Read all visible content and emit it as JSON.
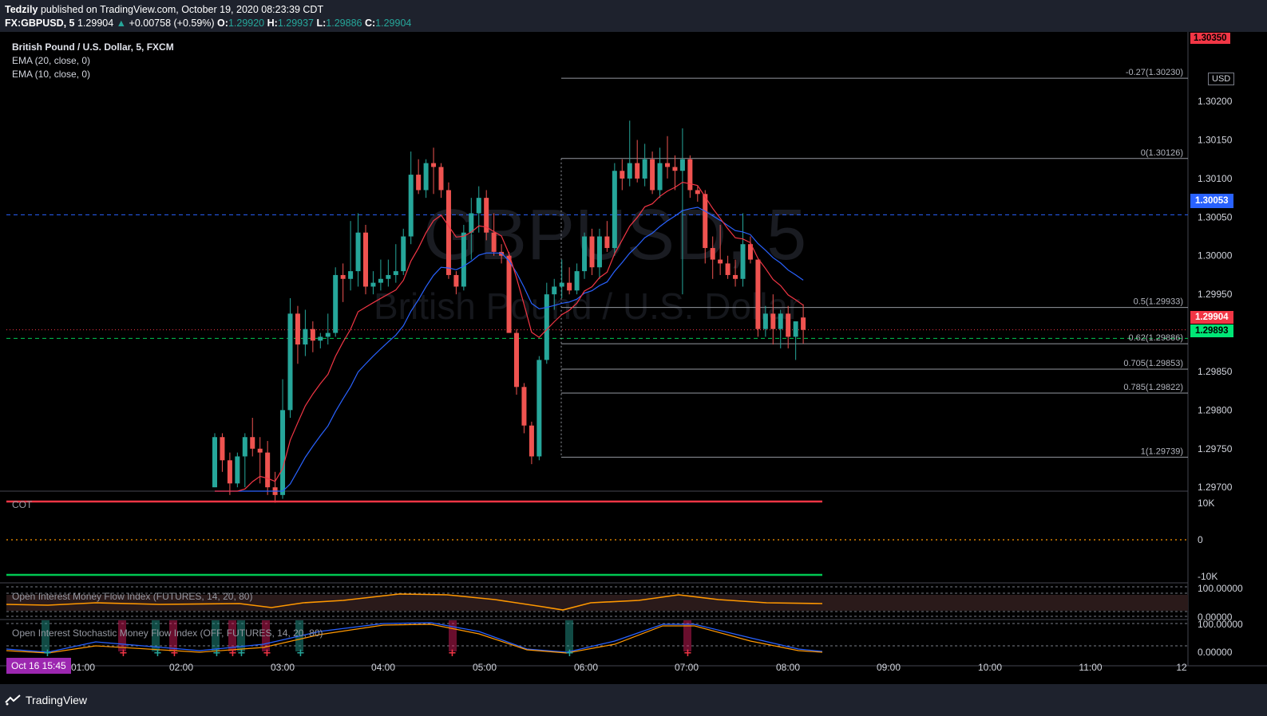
{
  "header": {
    "author": "Tedzily",
    "published": "published on TradingView.com, October 19, 2020 08:23:39 CDT",
    "symbol": "FX:GBPUSD, 5",
    "last": "1.29904",
    "change": "+0.00758 (+0.59%)",
    "o_label": "O:",
    "o": "1.29920",
    "h_label": "H:",
    "h": "1.29937",
    "l_label": "L:",
    "l": "1.29886",
    "c_label": "C:",
    "c": "1.29904"
  },
  "legend": {
    "title": "British Pound / U.S. Dollar, 5, FXCM",
    "ema20": "EMA (20, close, 0)",
    "ema10": "EMA (10, close, 0)"
  },
  "watermark": {
    "symbol": "GBPUSD, 5",
    "name": "British Pound / U.S. Dollar"
  },
  "currency_label": "USD",
  "price_badges": {
    "top": "1.30350",
    "blue": "1.30053",
    "last": "1.29904",
    "green": "1.29893"
  },
  "panes": {
    "cot": "COT",
    "oimfi": "Open Interest Money Flow Index (FUTURES, 14, 20, 80)",
    "oismfi": "Open Interest Stochastic Money Flow Index (OFF, FUTURES, 14, 20, 80)",
    "cot_ticks": [
      "10K",
      "0",
      "-10K"
    ],
    "mfi_ticks": [
      "100.00000",
      "0.00000"
    ],
    "smfi_ticks": [
      "100.00000",
      "0.00000"
    ]
  },
  "date_badge": "Oct 16   15:45",
  "footer": {
    "brand": "TradingView"
  },
  "colors": {
    "bull": "#26a69a",
    "bear": "#ef5350",
    "ema20": "#2962ff",
    "ema10": "#f23645",
    "bg": "#000000",
    "panel": "#1e222d"
  },
  "chart_data": {
    "type": "candlestick",
    "title": "British Pound / U.S. Dollar, 5, FXCM",
    "ylim": [
      1.29695,
      1.3029
    ],
    "y_ticks": [
      1.297,
      1.2975,
      1.298,
      1.2985,
      1.299,
      1.2995,
      1.3,
      1.3005,
      1.301,
      1.3015,
      1.302
    ],
    "y_tick_labels": [
      "1.29700",
      "1.29750",
      "1.29800",
      "1.29850",
      "1.29900",
      "1.29950",
      "1.30000",
      "1.30050",
      "1.30100",
      "1.30150",
      "1.30200"
    ],
    "x_tick_labels": [
      "01:00",
      "02:00",
      "03:00",
      "04:00",
      "05:00",
      "06:00",
      "07:00",
      "08:00",
      "09:00",
      "10:00",
      "11:00",
      "12"
    ],
    "fib_levels": [
      {
        "label": "-0.27(1.30230)",
        "price": 1.3023
      },
      {
        "label": "0(1.30126)",
        "price": 1.30126
      },
      {
        "label": "0.5(1.29933)",
        "price": 1.29933
      },
      {
        "label": "0.62(1.29886)",
        "price": 1.29886
      },
      {
        "label": "0.705(1.29853)",
        "price": 1.29853
      },
      {
        "label": "0.785(1.29822)",
        "price": 1.29822
      },
      {
        "label": "1(1.29739)",
        "price": 1.29739
      }
    ],
    "horizontal_lines": [
      {
        "price": 1.3035,
        "style": "dashed",
        "color": "#f23645"
      },
      {
        "price": 1.30053,
        "style": "dashed",
        "color": "#2962ff"
      },
      {
        "price": 1.29893,
        "style": "dashed",
        "color": "#00c853"
      },
      {
        "price": 1.29904,
        "style": "dotted",
        "color": "#f23645"
      }
    ],
    "candles": [
      {
        "o": 1.297,
        "h": 1.2977,
        "l": 1.297,
        "c": 1.29765
      },
      {
        "o": 1.29765,
        "h": 1.2977,
        "l": 1.2972,
        "c": 1.29735
      },
      {
        "o": 1.29735,
        "h": 1.29745,
        "l": 1.2969,
        "c": 1.29705
      },
      {
        "o": 1.29705,
        "h": 1.29745,
        "l": 1.297,
        "c": 1.2974
      },
      {
        "o": 1.2974,
        "h": 1.2977,
        "l": 1.297,
        "c": 1.29765
      },
      {
        "o": 1.29765,
        "h": 1.2979,
        "l": 1.2974,
        "c": 1.2975
      },
      {
        "o": 1.2975,
        "h": 1.29765,
        "l": 1.29705,
        "c": 1.29745
      },
      {
        "o": 1.29745,
        "h": 1.2976,
        "l": 1.2969,
        "c": 1.297
      },
      {
        "o": 1.297,
        "h": 1.2972,
        "l": 1.2968,
        "c": 1.2969
      },
      {
        "o": 1.2969,
        "h": 1.2984,
        "l": 1.29685,
        "c": 1.298
      },
      {
        "o": 1.298,
        "h": 1.29945,
        "l": 1.2979,
        "c": 1.29925
      },
      {
        "o": 1.29925,
        "h": 1.29935,
        "l": 1.2986,
        "c": 1.29885
      },
      {
        "o": 1.29885,
        "h": 1.2993,
        "l": 1.2987,
        "c": 1.29905
      },
      {
        "o": 1.29905,
        "h": 1.29915,
        "l": 1.29875,
        "c": 1.2989
      },
      {
        "o": 1.2989,
        "h": 1.299,
        "l": 1.2988,
        "c": 1.29895
      },
      {
        "o": 1.29895,
        "h": 1.29925,
        "l": 1.29885,
        "c": 1.299
      },
      {
        "o": 1.299,
        "h": 1.29985,
        "l": 1.29895,
        "c": 1.29975
      },
      {
        "o": 1.29975,
        "h": 1.2999,
        "l": 1.2994,
        "c": 1.2997
      },
      {
        "o": 1.2997,
        "h": 1.30045,
        "l": 1.29955,
        "c": 1.2998
      },
      {
        "o": 1.2998,
        "h": 1.30055,
        "l": 1.2996,
        "c": 1.3003
      },
      {
        "o": 1.3003,
        "h": 1.3004,
        "l": 1.2995,
        "c": 1.2996
      },
      {
        "o": 1.2996,
        "h": 1.2998,
        "l": 1.2995,
        "c": 1.29965
      },
      {
        "o": 1.29965,
        "h": 1.29995,
        "l": 1.29955,
        "c": 1.2997
      },
      {
        "o": 1.2997,
        "h": 1.29995,
        "l": 1.2996,
        "c": 1.29975
      },
      {
        "o": 1.29975,
        "h": 1.30015,
        "l": 1.29965,
        "c": 1.2998
      },
      {
        "o": 1.2998,
        "h": 1.30035,
        "l": 1.29975,
        "c": 1.30025
      },
      {
        "o": 1.30025,
        "h": 1.30135,
        "l": 1.30015,
        "c": 1.30105
      },
      {
        "o": 1.30105,
        "h": 1.30125,
        "l": 1.3008,
        "c": 1.30085
      },
      {
        "o": 1.30085,
        "h": 1.30125,
        "l": 1.30075,
        "c": 1.3012
      },
      {
        "o": 1.3012,
        "h": 1.3014,
        "l": 1.3008,
        "c": 1.30115
      },
      {
        "o": 1.30115,
        "h": 1.3012,
        "l": 1.30075,
        "c": 1.30085
      },
      {
        "o": 1.30085,
        "h": 1.30095,
        "l": 1.2997,
        "c": 1.29975
      },
      {
        "o": 1.29975,
        "h": 1.2998,
        "l": 1.2995,
        "c": 1.2996
      },
      {
        "o": 1.2996,
        "h": 1.3004,
        "l": 1.29955,
        "c": 1.3003
      },
      {
        "o": 1.3003,
        "h": 1.30075,
        "l": 1.29995,
        "c": 1.30055
      },
      {
        "o": 1.30055,
        "h": 1.3009,
        "l": 1.3003,
        "c": 1.30075
      },
      {
        "o": 1.30075,
        "h": 1.30085,
        "l": 1.3002,
        "c": 1.3003
      },
      {
        "o": 1.3003,
        "h": 1.30055,
        "l": 1.3,
        "c": 1.30005
      },
      {
        "o": 1.30005,
        "h": 1.30015,
        "l": 1.2999,
        "c": 1.3
      },
      {
        "o": 1.3,
        "h": 1.30005,
        "l": 1.299,
        "c": 1.299
      },
      {
        "o": 1.299,
        "h": 1.29905,
        "l": 1.2982,
        "c": 1.2983
      },
      {
        "o": 1.2983,
        "h": 1.29835,
        "l": 1.2977,
        "c": 1.2978
      },
      {
        "o": 1.2978,
        "h": 1.29785,
        "l": 1.2973,
        "c": 1.2974
      },
      {
        "o": 1.2974,
        "h": 1.2987,
        "l": 1.29735,
        "c": 1.29865
      },
      {
        "o": 1.29865,
        "h": 1.29965,
        "l": 1.2986,
        "c": 1.2995
      },
      {
        "o": 1.2995,
        "h": 1.2997,
        "l": 1.2993,
        "c": 1.2996
      },
      {
        "o": 1.2996,
        "h": 1.29995,
        "l": 1.29945,
        "c": 1.29965
      },
      {
        "o": 1.29965,
        "h": 1.29985,
        "l": 1.2995,
        "c": 1.29955
      },
      {
        "o": 1.29955,
        "h": 1.2999,
        "l": 1.2995,
        "c": 1.2998
      },
      {
        "o": 1.2998,
        "h": 1.3003,
        "l": 1.2997,
        "c": 1.30025
      },
      {
        "o": 1.30025,
        "h": 1.30035,
        "l": 1.29975,
        "c": 1.29985
      },
      {
        "o": 1.29985,
        "h": 1.30035,
        "l": 1.2997,
        "c": 1.30025
      },
      {
        "o": 1.30025,
        "h": 1.30045,
        "l": 1.30005,
        "c": 1.3001
      },
      {
        "o": 1.3001,
        "h": 1.3012,
        "l": 1.3,
        "c": 1.3011
      },
      {
        "o": 1.3011,
        "h": 1.30125,
        "l": 1.30085,
        "c": 1.301
      },
      {
        "o": 1.301,
        "h": 1.30175,
        "l": 1.3009,
        "c": 1.3012
      },
      {
        "o": 1.3012,
        "h": 1.3015,
        "l": 1.30095,
        "c": 1.301
      },
      {
        "o": 1.301,
        "h": 1.30145,
        "l": 1.3009,
        "c": 1.30125
      },
      {
        "o": 1.30125,
        "h": 1.30135,
        "l": 1.3008,
        "c": 1.30085
      },
      {
        "o": 1.30085,
        "h": 1.3014,
        "l": 1.30075,
        "c": 1.3012
      },
      {
        "o": 1.3012,
        "h": 1.30155,
        "l": 1.301,
        "c": 1.30115
      },
      {
        "o": 1.30115,
        "h": 1.3013,
        "l": 1.30085,
        "c": 1.3011
      },
      {
        "o": 1.3011,
        "h": 1.30165,
        "l": 1.2995,
        "c": 1.30125
      },
      {
        "o": 1.30125,
        "h": 1.3013,
        "l": 1.30075,
        "c": 1.30085
      },
      {
        "o": 1.30085,
        "h": 1.3009,
        "l": 1.3007,
        "c": 1.3008
      },
      {
        "o": 1.3008,
        "h": 1.30085,
        "l": 1.2999,
        "c": 1.3001
      },
      {
        "o": 1.3001,
        "h": 1.30025,
        "l": 1.2997,
        "c": 1.29995
      },
      {
        "o": 1.29995,
        "h": 1.3004,
        "l": 1.29975,
        "c": 1.2999
      },
      {
        "o": 1.2999,
        "h": 1.3,
        "l": 1.2997,
        "c": 1.29975
      },
      {
        "o": 1.29975,
        "h": 1.29995,
        "l": 1.2996,
        "c": 1.2997
      },
      {
        "o": 1.2997,
        "h": 1.30055,
        "l": 1.2996,
        "c": 1.30015
      },
      {
        "o": 1.30015,
        "h": 1.30025,
        "l": 1.2999,
        "c": 1.29995
      },
      {
        "o": 1.29995,
        "h": 1.29995,
        "l": 1.29895,
        "c": 1.29905
      },
      {
        "o": 1.29905,
        "h": 1.29935,
        "l": 1.29895,
        "c": 1.29925
      },
      {
        "o": 1.29925,
        "h": 1.2995,
        "l": 1.29885,
        "c": 1.29905
      },
      {
        "o": 1.29905,
        "h": 1.2993,
        "l": 1.2988,
        "c": 1.29925
      },
      {
        "o": 1.29925,
        "h": 1.29935,
        "l": 1.2988,
        "c": 1.29895
      },
      {
        "o": 1.29895,
        "h": 1.29915,
        "l": 1.29865,
        "c": 1.29915
      },
      {
        "o": 1.2992,
        "h": 1.29937,
        "l": 1.29886,
        "c": 1.29904
      }
    ]
  }
}
